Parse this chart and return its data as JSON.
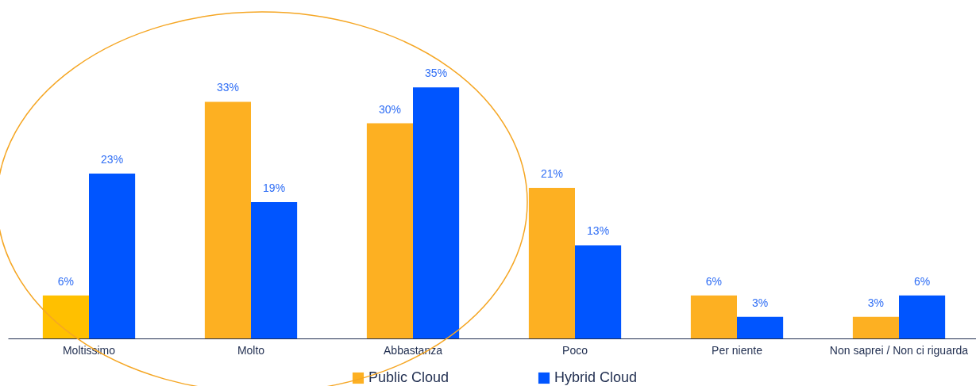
{
  "chart_data": {
    "type": "bar",
    "categories": [
      "Moltissimo",
      "Molto",
      "Abbastanza",
      "Poco",
      "Per niente",
      "Non saprei / Non ci riguarda"
    ],
    "series": [
      {
        "name": "Public Cloud",
        "color": "#fdb022",
        "colors": [
          "#ffc000",
          "#fdb022",
          "#fdb022",
          "#fdb022",
          "#fdb022",
          "#fdb022"
        ],
        "values": [
          6,
          33,
          30,
          21,
          6,
          3
        ],
        "value_labels": [
          "6%",
          "33%",
          "30%",
          "21%",
          "6%",
          "3%"
        ]
      },
      {
        "name": "Hybrid Cloud",
        "color": "#0055ff",
        "values": [
          23,
          19,
          35,
          13,
          3,
          6
        ],
        "value_labels": [
          "23%",
          "19%",
          "35%",
          "13%",
          "3%",
          "6%"
        ]
      }
    ],
    "legend": "bottom",
    "grid": false
  }
}
